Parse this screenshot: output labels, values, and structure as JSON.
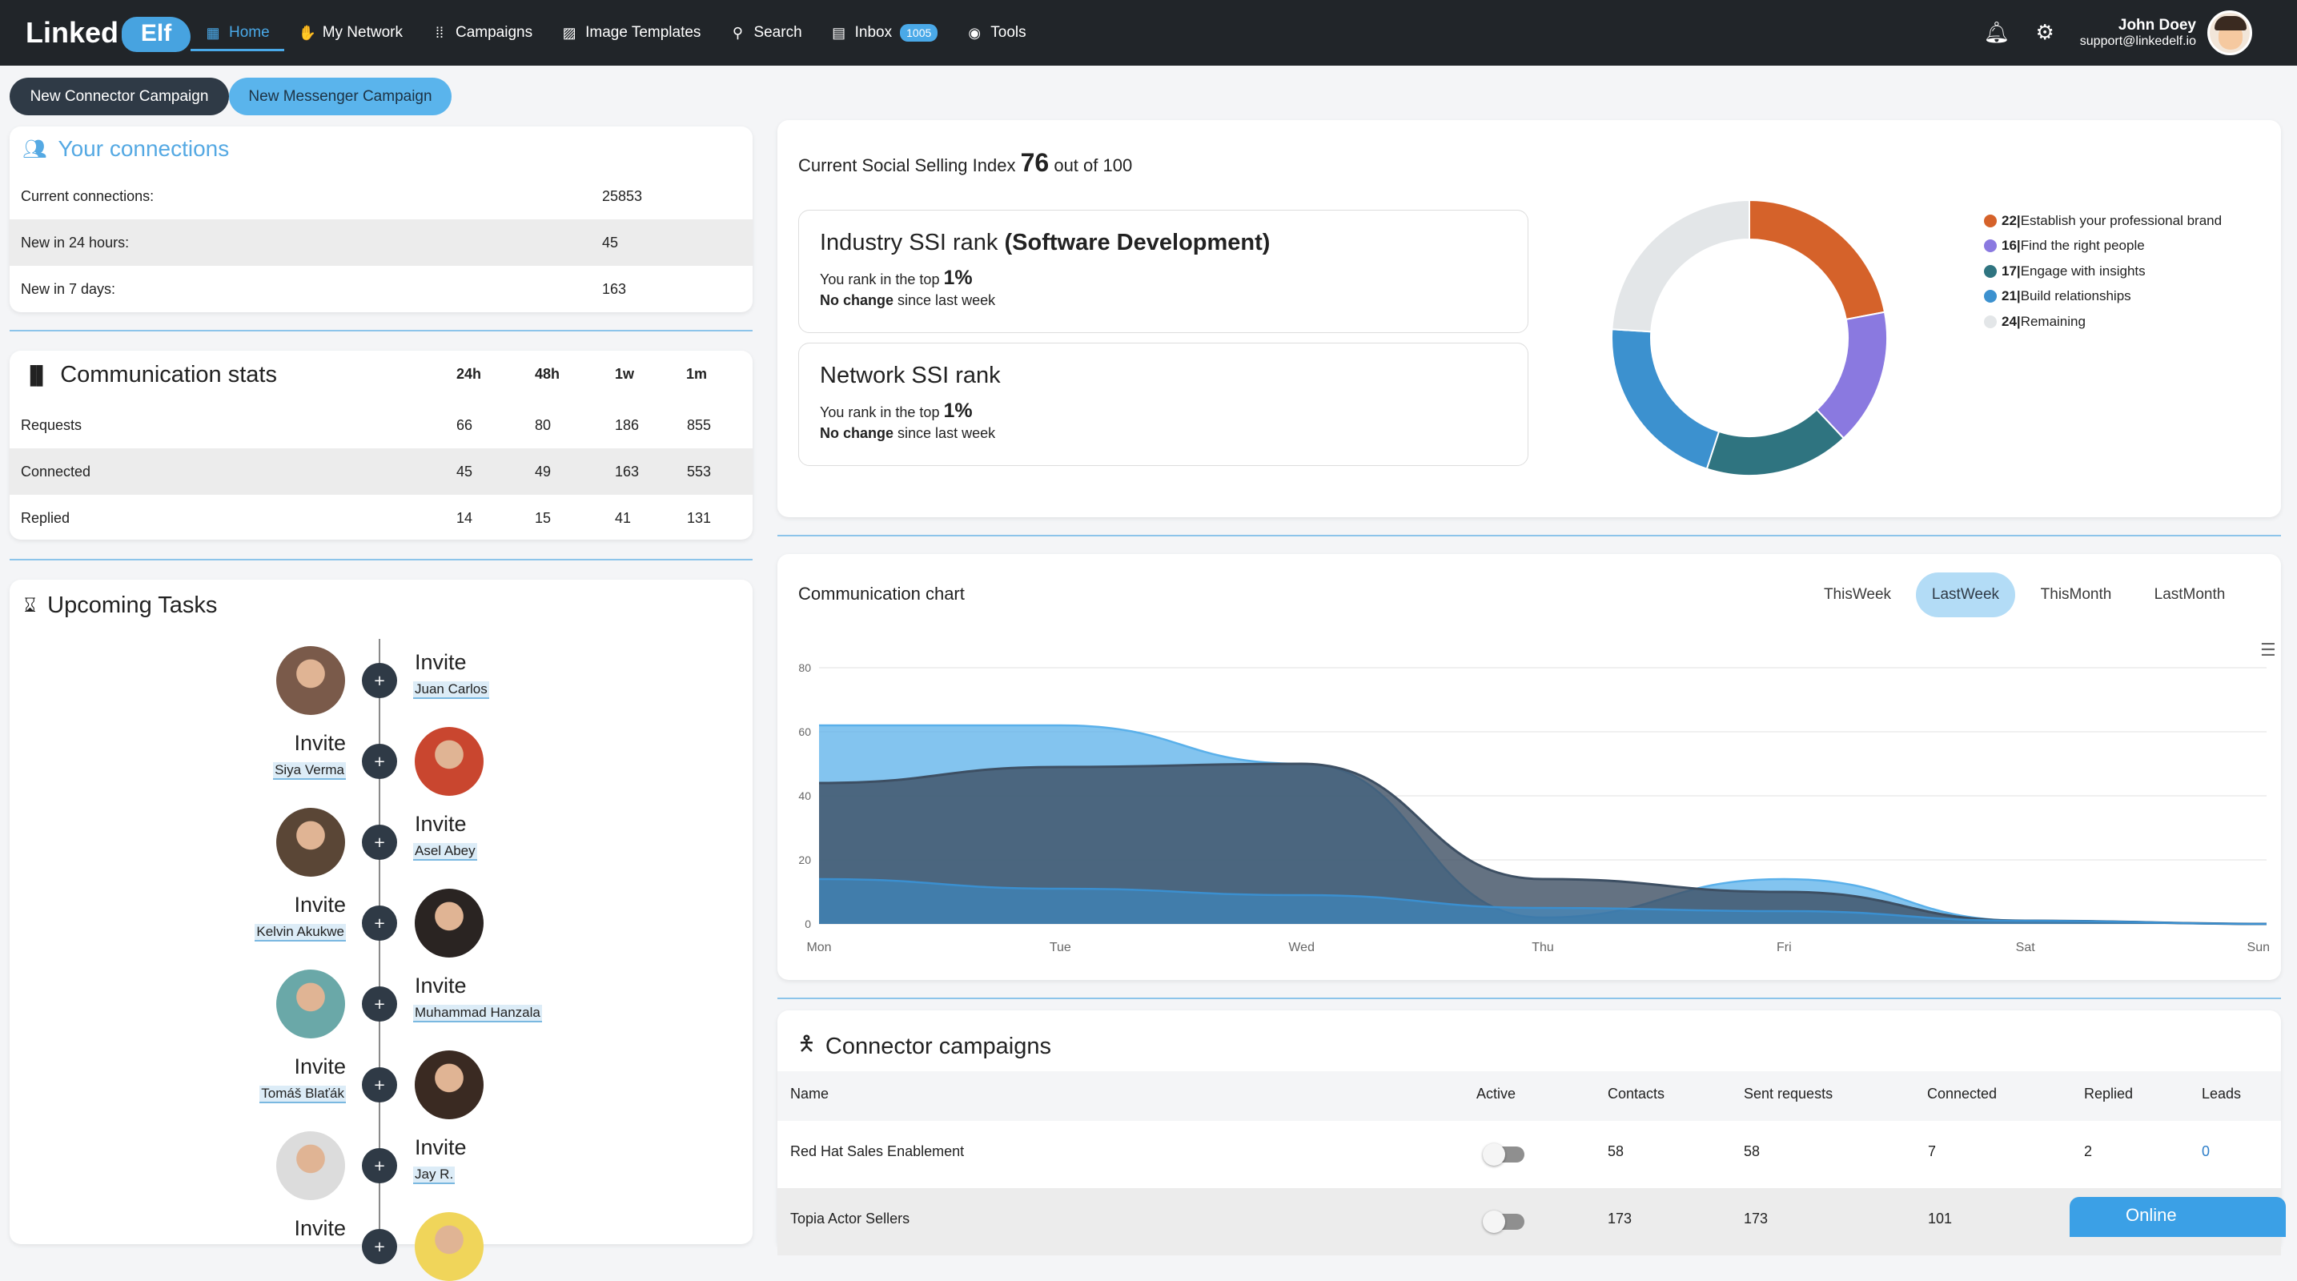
{
  "header": {
    "logo_text": "Linked",
    "logo_badge": "Elf",
    "nav": [
      {
        "label": "Home",
        "icon": "dashboard-icon"
      },
      {
        "label": "My Network",
        "icon": "network-icon"
      },
      {
        "label": "Campaigns",
        "icon": "campaigns-icon"
      },
      {
        "label": "Image Templates",
        "icon": "image-icon"
      },
      {
        "label": "Search",
        "icon": "search-icon"
      },
      {
        "label": "Inbox",
        "icon": "inbox-icon",
        "badge": "1005"
      },
      {
        "label": "Tools",
        "icon": "eye-icon"
      }
    ],
    "user_name": "John Doey",
    "user_email": "support@linkedelf.io"
  },
  "actions": {
    "new_connector": "New Connector Campaign",
    "new_messenger": "New Messenger Campaign"
  },
  "connections": {
    "title": "Your connections",
    "rows": [
      {
        "label": "Current connections:",
        "value": "25853"
      },
      {
        "label": "New in 24 hours:",
        "value": "45"
      },
      {
        "label": "New in 7 days:",
        "value": "163"
      }
    ]
  },
  "comm_stats": {
    "title": "Communication stats",
    "columns": [
      "24h",
      "48h",
      "1w",
      "1m"
    ],
    "rows": [
      {
        "label": "Requests",
        "values": [
          "66",
          "80",
          "186",
          "855"
        ]
      },
      {
        "label": "Connected",
        "values": [
          "45",
          "49",
          "163",
          "553"
        ]
      },
      {
        "label": "Replied",
        "values": [
          "14",
          "15",
          "41",
          "131"
        ]
      }
    ]
  },
  "tasks": {
    "title": "Upcoming Tasks",
    "items": [
      {
        "action": "Invite",
        "name": "Juan Carlos"
      },
      {
        "action": "Invite",
        "name": "Siya Verma"
      },
      {
        "action": "Invite",
        "name": "Asel Abey"
      },
      {
        "action": "Invite",
        "name": "Kelvin Akukwe"
      },
      {
        "action": "Invite",
        "name": "Muhammad Hanzala"
      },
      {
        "action": "Invite",
        "name": "Tomáš Blaťák"
      },
      {
        "action": "Invite",
        "name": "Jay R."
      },
      {
        "action": "Invite",
        "name": ""
      }
    ]
  },
  "ssi": {
    "title_prefix": "Current Social Selling Index",
    "score": "76",
    "title_suffix": "out of 100",
    "industry": {
      "label": "Industry SSI rank",
      "sector": "(Software Development)",
      "rank_prefix": "You rank in the top",
      "rank": "1%",
      "change": "No change",
      "change_suffix": "since last week"
    },
    "network": {
      "label": "Network SSI rank",
      "rank_prefix": "You rank in the top",
      "rank": "1%",
      "change": "No change",
      "change_suffix": "since last week"
    },
    "legend": [
      {
        "value": "22",
        "label": "Establish your professional brand",
        "color": "#d5622a"
      },
      {
        "value": "16",
        "label": "Find the right people",
        "color": "#8a79e0"
      },
      {
        "value": "17",
        "label": "Engage with insights",
        "color": "#2f7480"
      },
      {
        "value": "21",
        "label": "Build relationships",
        "color": "#3c91cf"
      },
      {
        "value": "24",
        "label": "Remaining",
        "color": "#e3e6e8"
      }
    ]
  },
  "comm_chart": {
    "title": "Communication chart",
    "tabs": [
      "ThisWeek",
      "LastWeek",
      "ThisMonth",
      "LastMonth"
    ],
    "active_tab": "LastWeek"
  },
  "chart_data": {
    "type": "area",
    "x": [
      "Mon",
      "Tue",
      "Wed",
      "Thu",
      "Fri",
      "Sat",
      "Sun"
    ],
    "ylim": [
      0,
      80
    ],
    "yticks": [
      "0",
      "20",
      "40",
      "60",
      "80"
    ],
    "series": [
      {
        "color": "#5ab0ea",
        "values": [
          62,
          62,
          50,
          2,
          14,
          1,
          0
        ]
      },
      {
        "color": "#3d4f63",
        "values": [
          44,
          49,
          50,
          14,
          10,
          1,
          0
        ]
      },
      {
        "color": "#3b8fcf",
        "values": [
          14,
          11,
          9,
          5,
          4,
          1,
          0
        ]
      }
    ]
  },
  "campaigns": {
    "title": "Connector campaigns",
    "columns": [
      "Name",
      "Active",
      "Contacts",
      "Sent requests",
      "Connected",
      "Replied",
      "Leads"
    ],
    "rows": [
      {
        "name": "Red Hat Sales Enablement",
        "contacts": "58",
        "sent": "58",
        "connected": "7",
        "replied": "2",
        "leads": "0"
      },
      {
        "name": "Topia Actor Sellers",
        "contacts": "173",
        "sent": "173",
        "connected": "101",
        "replied": "",
        "leads": ""
      }
    ]
  },
  "chat": {
    "status": "Online"
  }
}
